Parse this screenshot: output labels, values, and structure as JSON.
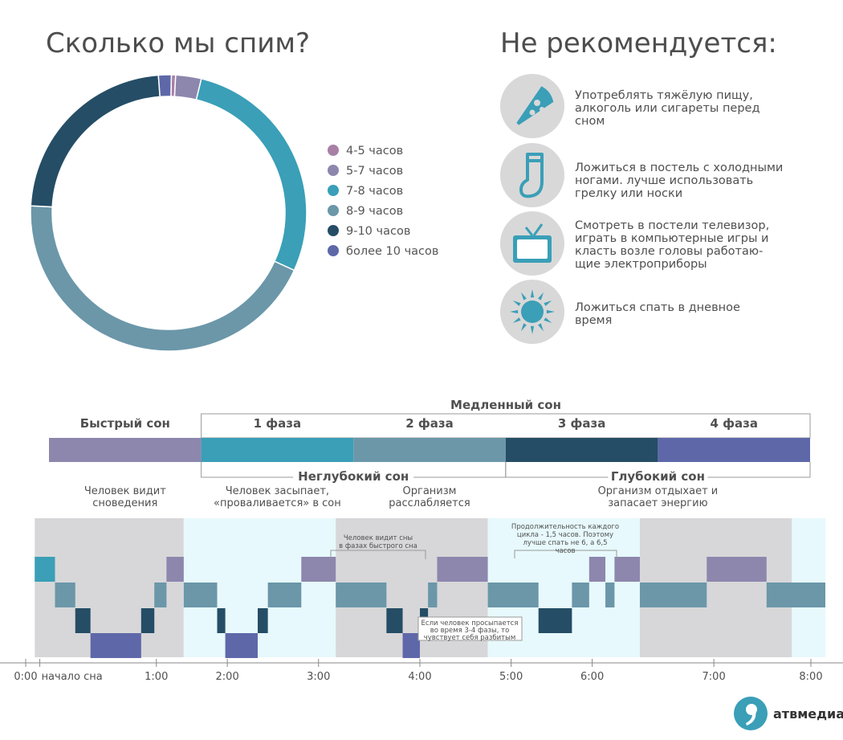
{
  "donut": {
    "title": "Сколько мы спим?",
    "chart_data": {
      "type": "pie",
      "categories": [
        "4-5 часов",
        "5-7 часов",
        "7-8 часов",
        "8-9 часов",
        "9-10 часов",
        "более 10 часов"
      ],
      "values": [
        0.5,
        3,
        28,
        44,
        23,
        1.5
      ],
      "colors": [
        "#a880a6",
        "#8d86ad",
        "#3a9fb7",
        "#6b97a9",
        "#254d66",
        "#5e68a9"
      ],
      "donut": true,
      "legend_position": "right"
    }
  },
  "not_recommended": {
    "title": "Не рекомендуется:",
    "items": [
      {
        "icon": "pizza-icon",
        "text": [
          "Употреблять тяжёлую пищу,",
          "алкоголь или сигареты перед",
          "сном"
        ]
      },
      {
        "icon": "sock-icon",
        "text": [
          "Ложиться в постель с холодными",
          "ногами. лучше использовать",
          "грелку или носки"
        ]
      },
      {
        "icon": "tv-icon",
        "text": [
          "Смотреть в постели телевизор,",
          "играть в компьютерные игры и",
          "класть возле головы работаю-",
          "щие электроприборы"
        ]
      },
      {
        "icon": "sun-icon",
        "text": [
          "Ложиться спать в дневное",
          "время"
        ]
      }
    ]
  },
  "stages": {
    "slow_sleep_label": "Медленный сон",
    "fast_sleep_label": "Быстрый сон",
    "phases": [
      "1 фаза",
      "2 фаза",
      "3 фаза",
      "4 фаза"
    ],
    "bar_colors": [
      "#8d86ad",
      "#3a9fb7",
      "#6b97a9",
      "#254d66",
      "#5e68a9"
    ],
    "shallow_label": "Неглубокий сон",
    "deep_label": "Глубокий сон",
    "descriptions": [
      [
        "Человек видит",
        "сноведения"
      ],
      [
        "Человек засыпает,",
        "«проваливается» в сон"
      ],
      [
        "Организм",
        "расслабляется"
      ],
      [
        "Организм отдыхает и",
        "запасает энергию"
      ]
    ]
  },
  "sleep_chart": {
    "chart_data": {
      "type": "area",
      "x_unit": "hours",
      "xlim": [
        0,
        8
      ],
      "x_ticks": [
        "0:00",
        "начало сна",
        "1:00",
        "2:00",
        "3:00",
        "4:00",
        "5:00",
        "6:00",
        "7:00",
        "8:00"
      ],
      "x_tick_values": [
        0,
        0.25,
        1.4,
        2.1,
        3,
        4,
        4.9,
        5.7,
        6.9,
        8
      ],
      "levels": [
        "REM",
        "Phase 1",
        "Phase 2",
        "Phase 3",
        "Phase 4"
      ],
      "level_colors": [
        "#8d86ad",
        "#3a9fb7",
        "#6b97a9",
        "#254d66",
        "#5e68a9"
      ],
      "segments": [
        [
          0.2,
          0.4,
          1
        ],
        [
          0.4,
          0.6,
          2
        ],
        [
          0.6,
          0.75,
          3
        ],
        [
          0.75,
          1.25,
          4
        ],
        [
          1.25,
          1.38,
          3
        ],
        [
          1.38,
          1.5,
          2
        ],
        [
          1.5,
          1.67,
          0
        ],
        [
          1.67,
          2.0,
          2
        ],
        [
          2.0,
          2.08,
          3
        ],
        [
          2.08,
          2.4,
          4
        ],
        [
          2.4,
          2.5,
          3
        ],
        [
          2.5,
          2.83,
          2
        ],
        [
          2.83,
          3.17,
          0
        ],
        [
          3.17,
          3.67,
          2
        ],
        [
          3.67,
          3.83,
          3
        ],
        [
          3.83,
          4.0,
          4
        ],
        [
          4.0,
          4.08,
          3
        ],
        [
          4.08,
          4.17,
          2
        ],
        [
          4.17,
          4.67,
          0
        ],
        [
          4.67,
          5.17,
          2
        ],
        [
          5.17,
          5.5,
          3
        ],
        [
          5.5,
          5.67,
          2
        ],
        [
          5.67,
          5.83,
          0
        ],
        [
          5.83,
          5.92,
          2
        ],
        [
          5.92,
          6.17,
          0
        ],
        [
          6.17,
          6.83,
          2
        ],
        [
          6.83,
          7.42,
          0
        ],
        [
          7.42,
          8.0,
          2
        ]
      ],
      "bands": [
        [
          0.2,
          1.67,
          "#d7d7d9"
        ],
        [
          1.67,
          3.17,
          "#e7f9fc"
        ],
        [
          3.17,
          4.67,
          "#d7d7d9"
        ],
        [
          4.67,
          6.17,
          "#e7f9fc"
        ],
        [
          6.17,
          7.67,
          "#d7d7d9"
        ],
        [
          7.67,
          8.0,
          "#e7f9fc"
        ]
      ],
      "annotations": [
        [
          "Человек видит сны",
          "в фазах быстрого сна"
        ],
        [
          "Продолжительность каждого",
          "цикла - 1,5 часов. Поэтому",
          "лучше спать не 6, а 6,5",
          "часов"
        ],
        [
          "Если человек просыпается",
          "во время 3-4 фазы, то",
          "чувствует себя разбитым"
        ]
      ]
    }
  },
  "logo": {
    "text": "атвмедиа",
    "color": "#3a9fb7"
  }
}
